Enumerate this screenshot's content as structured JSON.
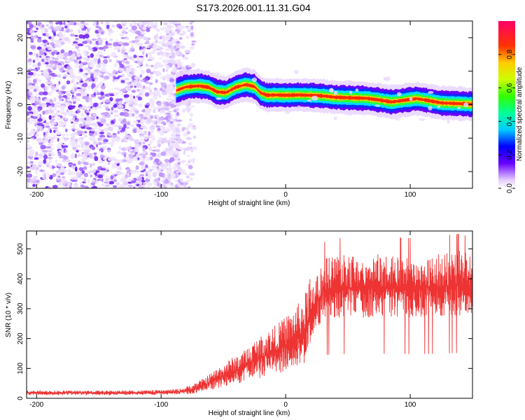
{
  "title": "S173.2026.001.11.31.G04",
  "chart_data": [
    {
      "type": "heatmap",
      "xlabel": "Height of straight line (km)",
      "ylabel": "Frequency (Hz)",
      "xlim": [
        -208,
        150
      ],
      "ylim": [
        -25,
        25
      ],
      "xticks": [
        -200,
        -100,
        0,
        100
      ],
      "xtick_labels": [
        "-200",
        "-100",
        "0",
        "100"
      ],
      "yticks": [
        -20,
        -10,
        0,
        10,
        20
      ],
      "ytick_labels": [
        "-20",
        "-10",
        "0",
        "10",
        "20"
      ],
      "colorbar": {
        "label": "Normalized spectral amplitude",
        "range": [
          0,
          1
        ],
        "ticks": [
          0,
          0.2,
          0.4,
          0.6,
          0.8
        ],
        "tick_labels": [
          "0.0",
          "0.2",
          "0.4",
          "0.6",
          "0.8"
        ]
      },
      "ridge": {
        "x": [
          -88,
          -80,
          -70,
          -62,
          -55,
          -48,
          -40,
          -32,
          -25,
          -20,
          -15,
          -8,
          0,
          10,
          20,
          30,
          40,
          55,
          65,
          75,
          85,
          95,
          105,
          115,
          125,
          140,
          150
        ],
        "y": [
          4.2,
          5.3,
          5.6,
          5.2,
          3.8,
          3.6,
          5.2,
          6.0,
          5.4,
          3.5,
          2.8,
          2.9,
          2.8,
          2.9,
          2.8,
          2.6,
          2.2,
          2.0,
          1.9,
          1.4,
          0.8,
          1.3,
          1.8,
          1.2,
          0.5,
          0.3,
          0.1
        ]
      },
      "noise_region": {
        "x_range": [
          -208,
          -85
        ],
        "y_range": [
          -25,
          25
        ]
      }
    },
    {
      "type": "line",
      "xlabel": "Height of straight line (km)",
      "ylabel": "SNR (10 * v/v)",
      "xlim": [
        -208,
        150
      ],
      "ylim": [
        0,
        560
      ],
      "xticks": [
        -200,
        -100,
        0,
        100
      ],
      "xtick_labels": [
        "-200",
        "-100",
        "0",
        "100"
      ],
      "yticks": [
        0,
        100,
        200,
        300,
        400,
        500
      ],
      "ytick_labels": [
        "0",
        "100",
        "200",
        "300",
        "400",
        "500"
      ],
      "color": "#ee3333",
      "envelope": {
        "x": [
          -208,
          -150,
          -100,
          -85,
          -75,
          -65,
          -55,
          -45,
          -35,
          -25,
          -15,
          -5,
          5,
          15,
          20,
          25,
          30,
          40,
          60,
          80,
          100,
          120,
          140,
          150
        ],
        "y": [
          18,
          18,
          19,
          22,
          30,
          45,
          65,
          85,
          100,
          125,
          145,
          165,
          190,
          220,
          270,
          320,
          360,
          370,
          370,
          372,
          370,
          372,
          380,
          370
        ]
      }
    }
  ]
}
